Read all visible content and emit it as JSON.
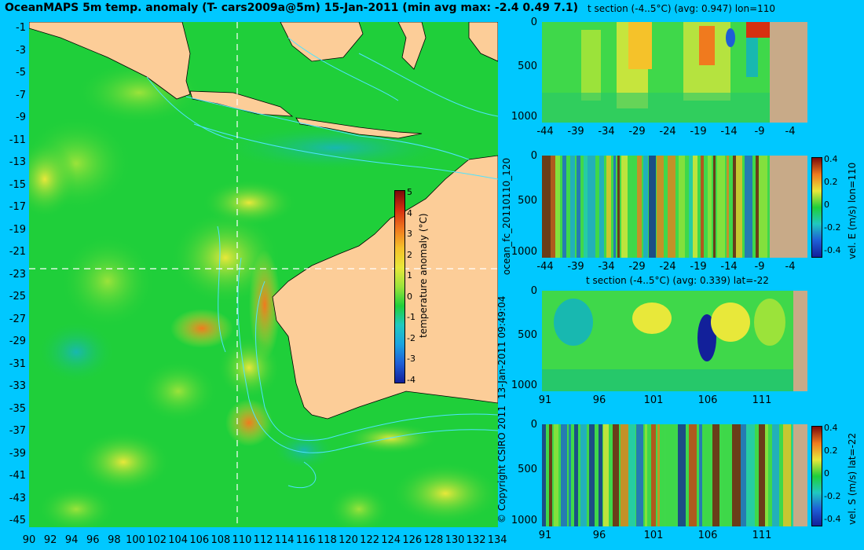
{
  "title": "OceanMAPS 5m temp. anomaly (T- cars2009a@5m) 15-Jan-2011 (min avg max: -2.4 0.49 7.1)",
  "map": {
    "lat_labels": [
      "-1",
      "-3",
      "-5",
      "-7",
      "-9",
      "-11",
      "-13",
      "-15",
      "-17",
      "-19",
      "-21",
      "-23",
      "-25",
      "-27",
      "-29",
      "-31",
      "-33",
      "-35",
      "-37",
      "-39",
      "-41",
      "-43",
      "-45"
    ],
    "lon_labels": [
      "90",
      "92",
      "94",
      "96",
      "98",
      "100",
      "102",
      "104",
      "106",
      "108",
      "110",
      "112",
      "114",
      "116",
      "118",
      "120",
      "122",
      "124",
      "126",
      "128",
      "130",
      "132",
      "134"
    ],
    "crosshair": {
      "lon": 110,
      "lat": -22
    },
    "colorbar": {
      "label": "temperature anomaly (°C)",
      "ticks": [
        "5",
        "4",
        "3",
        "2",
        "1",
        "0",
        "-1",
        "-2",
        "-3",
        "-4"
      ]
    },
    "colors": {
      "land": "#fccd98",
      "ocean_base": "#1fcf3a",
      "contours": "#4ee3ff"
    }
  },
  "side_text": {
    "run_id": "ocean_fc_20110110_120",
    "timestamp": "13-Jan-2011 09:49:04",
    "copyright": "© Copyright CSIRO 2011"
  },
  "panels": [
    {
      "title": "t section (-4..5°C) (avg: 0.947) lon=110",
      "y_ticks": [
        "0",
        "500",
        "1000"
      ],
      "x_ticks": [
        "-44",
        "-39",
        "-34",
        "-29",
        "-24",
        "-19",
        "-14",
        "-9",
        "-4"
      ]
    },
    {
      "title": "",
      "y_ticks": [
        "0",
        "500",
        "1000"
      ],
      "x_ticks": [
        "-44",
        "-39",
        "-34",
        "-29",
        "-24",
        "-19",
        "-14",
        "-9",
        "-4"
      ],
      "colorbar": {
        "label": "vel. E (m/s) lon=110",
        "ticks": [
          "0.4",
          "0.2",
          "0",
          "-0.2",
          "-0.4"
        ]
      }
    },
    {
      "title": "t section (-4..5°C) (avg: 0.339) lat=-22",
      "y_ticks": [
        "0",
        "500",
        "1000"
      ],
      "x_ticks": [
        "91",
        "96",
        "101",
        "106",
        "111"
      ]
    },
    {
      "title": "",
      "y_ticks": [
        "0",
        "500",
        "1000"
      ],
      "x_ticks": [
        "91",
        "96",
        "101",
        "106",
        "111"
      ],
      "colorbar": {
        "label": "vel. S (m/s) lat=-22",
        "ticks": [
          "0.4",
          "0.2",
          "0",
          "-0.2",
          "-0.4"
        ]
      }
    }
  ]
}
